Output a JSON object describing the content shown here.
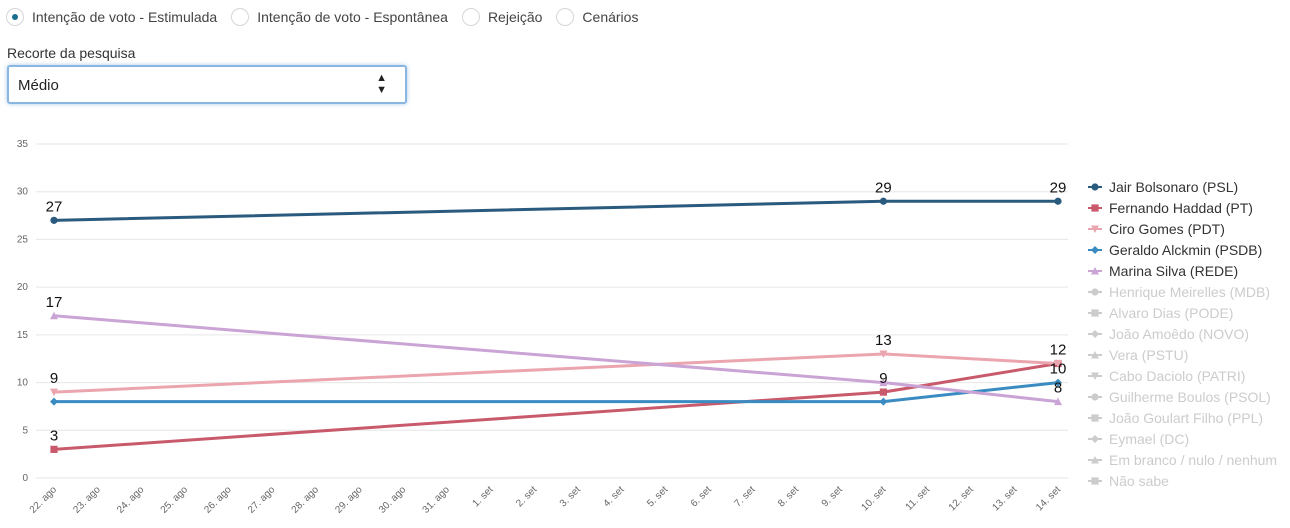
{
  "tabs": [
    {
      "label": "Intenção de voto - Estimulada",
      "selected": true
    },
    {
      "label": "Intenção de voto - Espontânea",
      "selected": false
    },
    {
      "label": "Rejeição",
      "selected": false
    },
    {
      "label": "Cenários",
      "selected": false
    }
  ],
  "filter": {
    "label": "Recorte da pesquisa",
    "value": "Médio"
  },
  "colors": {
    "accent": "#1a6e8e",
    "grid": "#e6e6e6",
    "hidden_series": "#cccccc"
  },
  "chart_data": {
    "type": "line",
    "x": [
      "22. ago",
      "23. ago",
      "24. ago",
      "25. ago",
      "26. ago",
      "27. ago",
      "28. ago",
      "29. ago",
      "30. ago",
      "31. ago",
      "1. set",
      "2. set",
      "3. set",
      "4. set",
      "5. set",
      "6. set",
      "7. set",
      "8. set",
      "9. set",
      "10. set",
      "11. set",
      "12. set",
      "13. set",
      "14. set"
    ],
    "ylim": [
      0,
      35
    ],
    "yticks": [
      "0",
      "5",
      "10",
      "15",
      "20",
      "25",
      "30",
      "35"
    ],
    "grid": true,
    "legend_position": "right",
    "series": [
      {
        "name": "Jair Bolsonaro (PSL)",
        "color": "#2a5b7e",
        "marker": "circle",
        "visible": true,
        "points": [
          {
            "x": "22. ago",
            "y": 27,
            "label": "27"
          },
          {
            "x": "10. set",
            "y": 29,
            "label": "29"
          },
          {
            "x": "14. set",
            "y": 29,
            "label": "29"
          }
        ]
      },
      {
        "name": "Fernando Haddad (PT)",
        "color": "#c85a6b",
        "marker": "square",
        "visible": true,
        "points": [
          {
            "x": "22. ago",
            "y": 3,
            "label": "3"
          },
          {
            "x": "10. set",
            "y": 9,
            "label": "9"
          },
          {
            "x": "14. set",
            "y": 12,
            "label": ""
          }
        ]
      },
      {
        "name": "Ciro Gomes (PDT)",
        "color": "#eba5ae",
        "marker": "triangle-down",
        "visible": true,
        "points": [
          {
            "x": "22. ago",
            "y": 9,
            "label": "9"
          },
          {
            "x": "10. set",
            "y": 13,
            "label": "13"
          },
          {
            "x": "14. set",
            "y": 12,
            "label": "12"
          }
        ]
      },
      {
        "name": "Geraldo Alckmin (PSDB)",
        "color": "#3a8bc2",
        "marker": "diamond",
        "visible": true,
        "points": [
          {
            "x": "22. ago",
            "y": 8,
            "label": ""
          },
          {
            "x": "10. set",
            "y": 8,
            "label": ""
          },
          {
            "x": "14. set",
            "y": 10,
            "label": "10"
          }
        ]
      },
      {
        "name": "Marina Silva (REDE)",
        "color": "#c9a4d4",
        "marker": "triangle",
        "visible": true,
        "points": [
          {
            "x": "22. ago",
            "y": 17,
            "label": "17"
          },
          {
            "x": "10. set",
            "y": 10,
            "label": ""
          },
          {
            "x": "14. set",
            "y": 8,
            "label": "8"
          }
        ]
      },
      {
        "name": "Henrique Meirelles (MDB)",
        "marker": "circle",
        "visible": false,
        "points": []
      },
      {
        "name": "Alvaro Dias (PODE)",
        "marker": "square",
        "visible": false,
        "points": []
      },
      {
        "name": "João Amoêdo (NOVO)",
        "marker": "diamond",
        "visible": false,
        "points": []
      },
      {
        "name": "Vera (PSTU)",
        "marker": "triangle",
        "visible": false,
        "points": []
      },
      {
        "name": "Cabo Daciolo (PATRI)",
        "marker": "triangle-down",
        "visible": false,
        "points": []
      },
      {
        "name": "Guilherme Boulos (PSOL)",
        "marker": "circle",
        "visible": false,
        "points": []
      },
      {
        "name": "João Goulart Filho (PPL)",
        "marker": "square",
        "visible": false,
        "points": []
      },
      {
        "name": "Eymael (DC)",
        "marker": "diamond",
        "visible": false,
        "points": []
      },
      {
        "name": "Em branco / nulo / nenhum",
        "marker": "triangle",
        "visible": false,
        "points": []
      },
      {
        "name": "Não sabe",
        "marker": "square",
        "visible": false,
        "points": []
      }
    ]
  }
}
